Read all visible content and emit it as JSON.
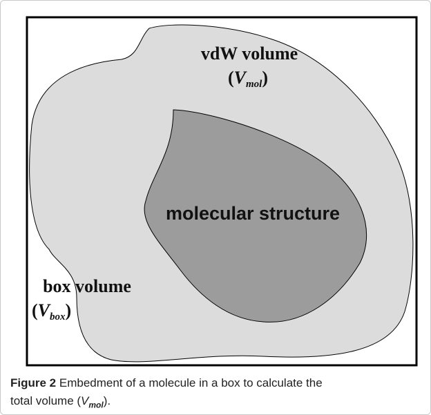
{
  "figure": {
    "regions": [
      {
        "label": "vdW volume",
        "symbol_parts": [
          "(",
          "V",
          "mol",
          ")"
        ]
      },
      {
        "label": "molecular structure"
      },
      {
        "label": "box volume",
        "symbol_parts": [
          "(",
          "V",
          "box",
          ")"
        ]
      }
    ],
    "caption": {
      "label": "Figure 2",
      "text": "Embedment of a molecule in a box to calculate the",
      "text2": "total volume (",
      "symbol": "V",
      "subscript": "mol",
      "end": ")."
    }
  }
}
